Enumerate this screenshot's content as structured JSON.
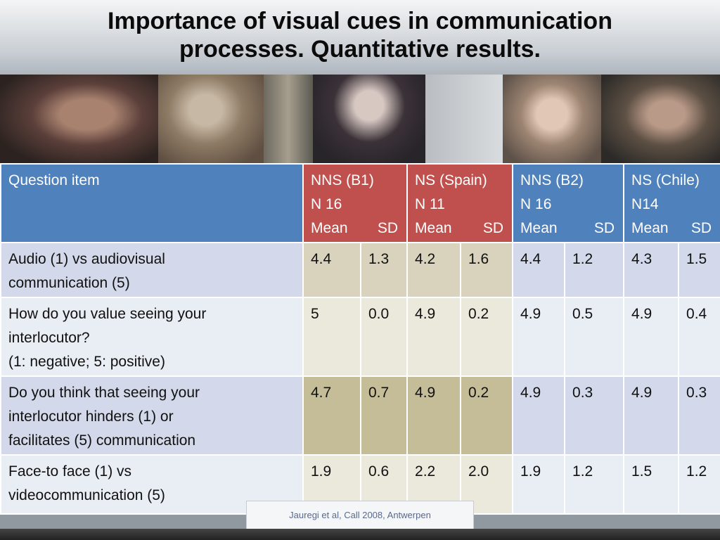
{
  "title": {
    "line1": "Importance of visual cues in communication",
    "line2": "processes. Quantitative results."
  },
  "table": {
    "header": {
      "question": "Question item",
      "groups": [
        {
          "line1": "NNS  (B1)",
          "line2": "N 16",
          "mean": "Mean",
          "sd": "SD"
        },
        {
          "line1": "NS (Spain)",
          "line2": "N 11",
          "mean": "Mean",
          "sd": "SD"
        },
        {
          "line1": "NNS (B2)",
          "line2": "N 16",
          "mean": "Mean",
          "sd": "SD"
        },
        {
          "line1": "NS (Chile)",
          "line2": "N14",
          "mean": "Mean",
          "sd": "SD"
        }
      ]
    },
    "rows": [
      {
        "question": [
          "Audio (1) vs audiovisual",
          "communication (5)"
        ],
        "values": [
          "4.4",
          "1.3",
          "4.2",
          "1.6",
          "4.4",
          "1.2",
          "4.3",
          "1.5"
        ]
      },
      {
        "question": [
          "How do you value seeing your",
          "interlocutor?",
          "(1: negative; 5: positive)"
        ],
        "values": [
          "5",
          "0.0",
          "4.9",
          "0.2",
          "4.9",
          "0.5",
          "4.9",
          "0.4"
        ]
      },
      {
        "question": [
          "Do you think that seeing your",
          "interlocutor hinders (1) or",
          "facilitates (5) communication"
        ],
        "values": [
          "4.7",
          "0.7",
          "4.9",
          "0.2",
          "4.9",
          "0.3",
          "4.9",
          "0.3"
        ]
      },
      {
        "question": [
          "Face-to face (1) vs",
          "videocommunication (5)"
        ],
        "values": [
          "1.9",
          "0.6",
          "2.2",
          "2.0",
          "1.9",
          "1.2",
          "1.5",
          "1.2"
        ]
      }
    ]
  },
  "citation": "Jauregi et al, Call 2008, Antwerpen",
  "colors": {
    "header_blue": "#4f81bd",
    "header_red": "#c0504d",
    "cell_tan": "#d9d3bd",
    "cell_tan_highlight": "#c4bd97",
    "cell_blue": "#d3d9ea"
  }
}
